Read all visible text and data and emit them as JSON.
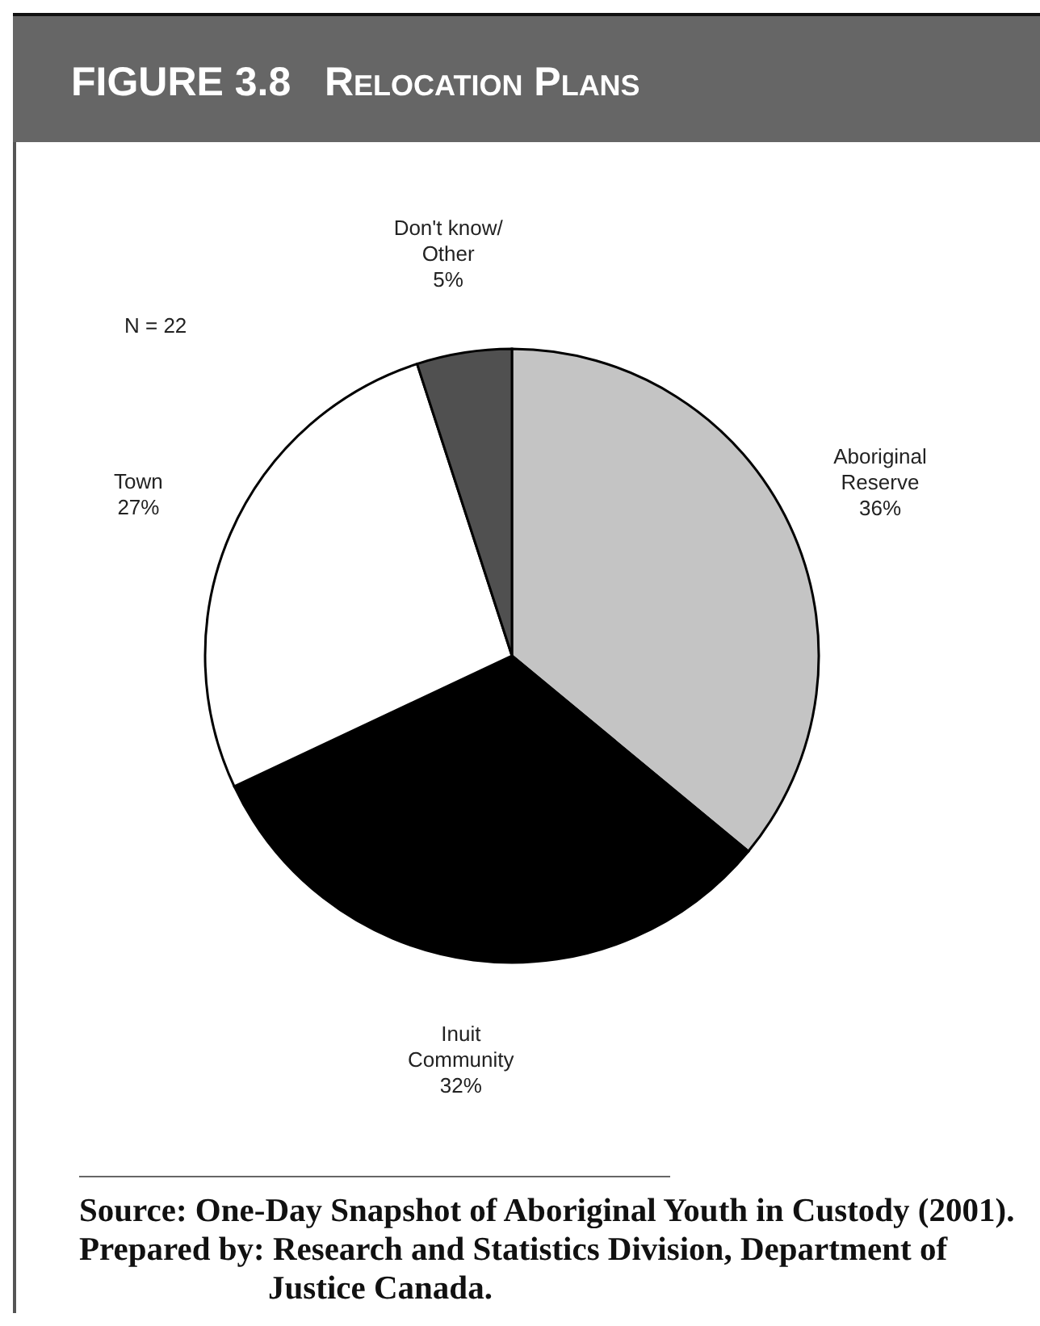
{
  "chart_data": {
    "type": "pie",
    "title": "FIGURE 3.8   Relocation Plans",
    "categories": [
      "Aboriginal Reserve",
      "Inuit Community",
      "Town",
      "Don't know/Other"
    ],
    "values": [
      36,
      32,
      27,
      5
    ],
    "colors": [
      "#c4c4c4",
      "#000000",
      "#ffffff",
      "#505050"
    ],
    "value_labels": [
      "36%",
      "32%",
      "27%",
      "5%"
    ],
    "annotations": [
      "N = 22",
      "Source: One-Day Snapshot of Aboriginal Youth in Custody (2001).",
      "Prepared by: Research and Statistics Division, Department of Justice Canada."
    ]
  }
}
